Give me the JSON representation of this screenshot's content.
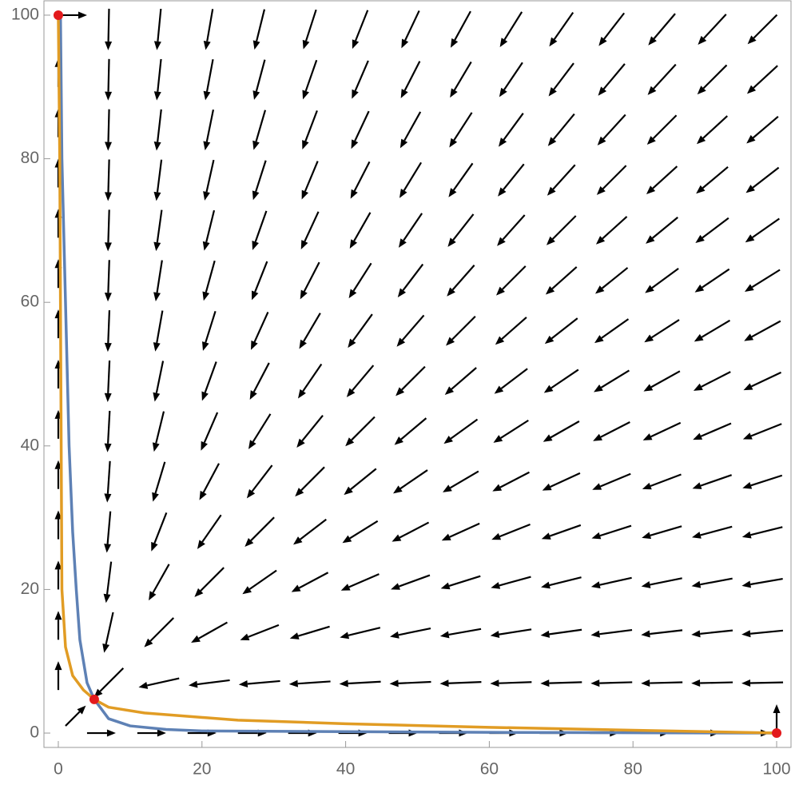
{
  "chart_data": {
    "type": "vector_field",
    "xlim": [
      -2,
      102
    ],
    "ylim": [
      -2,
      102
    ],
    "xticks": [
      0,
      20,
      40,
      60,
      80,
      100
    ],
    "yticks": [
      0,
      20,
      40,
      60,
      80,
      100
    ],
    "arrow_color": "#000000",
    "field": {
      "x": [
        7,
        14,
        21,
        28,
        35,
        42,
        49,
        56,
        63,
        70,
        77,
        84,
        91,
        98
      ],
      "y": [
        98,
        91,
        84,
        77,
        70,
        63,
        56,
        49,
        42,
        35,
        28,
        21,
        14,
        7
      ],
      "u": [
        [
          -2,
          -9,
          -16,
          -23,
          -30,
          -37,
          -44,
          -51,
          -58,
          -65,
          -72,
          -79,
          -86,
          -93
        ],
        [
          -2,
          -9,
          -16,
          -23,
          -30,
          -37,
          -44,
          -51,
          -58,
          -65,
          -72,
          -79,
          -86,
          -93
        ],
        [
          -2,
          -9,
          -16,
          -23,
          -30,
          -37,
          -44,
          -51,
          -58,
          -65,
          -72,
          -79,
          -86,
          -93
        ],
        [
          -2,
          -9,
          -16,
          -23,
          -30,
          -37,
          -44,
          -51,
          -58,
          -65,
          -72,
          -79,
          -86,
          -93
        ],
        [
          -2,
          -9,
          -16,
          -23,
          -30,
          -37,
          -44,
          -51,
          -58,
          -65,
          -72,
          -79,
          -86,
          -93
        ],
        [
          -2,
          -9,
          -16,
          -23,
          -30,
          -37,
          -44,
          -51,
          -58,
          -65,
          -72,
          -79,
          -86,
          -93
        ],
        [
          -2,
          -9,
          -16,
          -23,
          -30,
          -37,
          -44,
          -51,
          -58,
          -65,
          -72,
          -79,
          -86,
          -93
        ],
        [
          -2,
          -9,
          -16,
          -23,
          -30,
          -37,
          -44,
          -51,
          -58,
          -65,
          -72,
          -79,
          -86,
          -93
        ],
        [
          -2,
          -9,
          -16,
          -23,
          -30,
          -37,
          -44,
          -51,
          -58,
          -65,
          -72,
          -79,
          -86,
          -93
        ],
        [
          -2,
          -9,
          -16,
          -23,
          -30,
          -37,
          -44,
          -51,
          -58,
          -65,
          -72,
          -79,
          -86,
          -93
        ],
        [
          -2,
          -9,
          -16,
          -23,
          -30,
          -37,
          -44,
          -51,
          -58,
          -65,
          -72,
          -79,
          -86,
          -93
        ],
        [
          -2,
          -9,
          -16,
          -23,
          -30,
          -37,
          -44,
          -51,
          -58,
          -65,
          -72,
          -79,
          -86,
          -93
        ],
        [
          -2,
          -9,
          -16,
          -23,
          -30,
          -37,
          -44,
          -51,
          -58,
          -65,
          -72,
          -79,
          -86,
          -93
        ],
        [
          -2,
          -9,
          -16,
          -23,
          -30,
          -37,
          -44,
          -51,
          -58,
          -65,
          -72,
          -79,
          -86,
          -93
        ]
      ],
      "v": [
        [
          -93,
          -93,
          -93,
          -93,
          -93,
          -93,
          -93,
          -93,
          -93,
          -93,
          -93,
          -93,
          -93,
          -93
        ],
        [
          -86,
          -86,
          -86,
          -86,
          -86,
          -86,
          -86,
          -86,
          -86,
          -86,
          -86,
          -86,
          -86,
          -86
        ],
        [
          -79,
          -79,
          -79,
          -79,
          -79,
          -79,
          -79,
          -79,
          -79,
          -79,
          -79,
          -79,
          -79,
          -79
        ],
        [
          -72,
          -72,
          -72,
          -72,
          -72,
          -72,
          -72,
          -72,
          -72,
          -72,
          -72,
          -72,
          -72,
          -72
        ],
        [
          -65,
          -65,
          -65,
          -65,
          -65,
          -65,
          -65,
          -65,
          -65,
          -65,
          -65,
          -65,
          -65,
          -65
        ],
        [
          -58,
          -58,
          -58,
          -58,
          -58,
          -58,
          -58,
          -58,
          -58,
          -58,
          -58,
          -58,
          -58,
          -58
        ],
        [
          -51,
          -51,
          -51,
          -51,
          -51,
          -51,
          -51,
          -51,
          -51,
          -51,
          -51,
          -51,
          -51,
          -51
        ],
        [
          -44,
          -44,
          -44,
          -44,
          -44,
          -44,
          -44,
          -44,
          -44,
          -44,
          -44,
          -44,
          -44,
          -44
        ],
        [
          -37,
          -37,
          -37,
          -37,
          -37,
          -37,
          -37,
          -37,
          -37,
          -37,
          -37,
          -37,
          -37,
          -37
        ],
        [
          -30,
          -30,
          -30,
          -30,
          -30,
          -30,
          -30,
          -30,
          -30,
          -30,
          -30,
          -30,
          -30,
          -30
        ],
        [
          -23,
          -23,
          -23,
          -23,
          -23,
          -23,
          -23,
          -23,
          -23,
          -23,
          -23,
          -23,
          -23,
          -23
        ],
        [
          -16,
          -16,
          -16,
          -16,
          -16,
          -16,
          -16,
          -16,
          -16,
          -16,
          -16,
          -16,
          -16,
          -16
        ],
        [
          -9,
          -9,
          -9,
          -9,
          -9,
          -9,
          -9,
          -9,
          -9,
          -9,
          -9,
          -9,
          -9,
          -9
        ],
        [
          -2,
          -2,
          -2,
          -2,
          -2,
          -2,
          -2,
          -2,
          -2,
          -2,
          -2,
          -2,
          -2,
          -2
        ]
      ]
    },
    "boundary_arrows": [
      [
        0,
        100,
        1,
        0
      ],
      [
        100,
        0,
        0,
        1
      ],
      [
        1,
        1,
        1,
        1
      ],
      [
        4,
        0,
        1,
        0
      ],
      [
        11,
        0,
        1,
        0
      ],
      [
        18,
        0,
        1,
        0
      ],
      [
        25,
        0,
        1,
        0
      ],
      [
        32,
        0,
        1,
        0
      ],
      [
        39,
        0,
        1,
        0
      ],
      [
        46,
        0,
        1,
        0
      ],
      [
        53,
        0,
        1,
        0
      ],
      [
        60,
        0,
        1,
        0
      ],
      [
        67,
        0,
        1,
        0
      ],
      [
        74,
        0,
        1,
        0
      ],
      [
        81,
        0,
        1,
        0
      ],
      [
        88,
        0,
        1,
        0
      ],
      [
        95,
        0,
        1,
        0
      ],
      [
        0,
        6,
        0,
        1
      ],
      [
        0,
        13,
        0,
        1
      ],
      [
        0,
        20,
        0,
        1
      ],
      [
        0,
        27,
        0,
        1
      ],
      [
        0,
        34,
        0,
        1
      ],
      [
        0,
        41,
        0,
        1
      ],
      [
        0,
        48,
        0,
        1
      ],
      [
        0,
        55,
        0,
        1
      ],
      [
        0,
        62,
        0,
        1
      ],
      [
        0,
        69,
        0,
        1
      ],
      [
        0,
        76,
        0,
        1
      ],
      [
        0,
        83,
        0,
        1
      ],
      [
        0,
        90,
        0,
        1
      ]
    ],
    "series": [
      {
        "color": "#5e81b5",
        "x": [
          0.3,
          0.5,
          1,
          1.5,
          2,
          2.5,
          3,
          4,
          5,
          7,
          10,
          15,
          20,
          40,
          60,
          80,
          100
        ],
        "y": [
          100,
          80,
          60,
          40,
          28,
          20,
          13,
          7,
          4.7,
          2,
          1,
          0.5,
          0.3,
          0.2,
          0.1,
          0.05,
          0
        ]
      },
      {
        "color": "#e19c24",
        "x": [
          0,
          0.2,
          0.3,
          0.4,
          0.5,
          1,
          2,
          3.5,
          5,
          7,
          12,
          25,
          40,
          60,
          80,
          100
        ],
        "y": [
          100,
          80,
          60,
          40,
          20,
          12,
          8,
          6,
          4.7,
          3.6,
          2.8,
          1.8,
          1.3,
          0.8,
          0.4,
          0
        ]
      }
    ],
    "points": {
      "color": "#e31a1c",
      "x": [
        0,
        5,
        100
      ],
      "y": [
        100,
        4.7,
        0
      ]
    }
  }
}
